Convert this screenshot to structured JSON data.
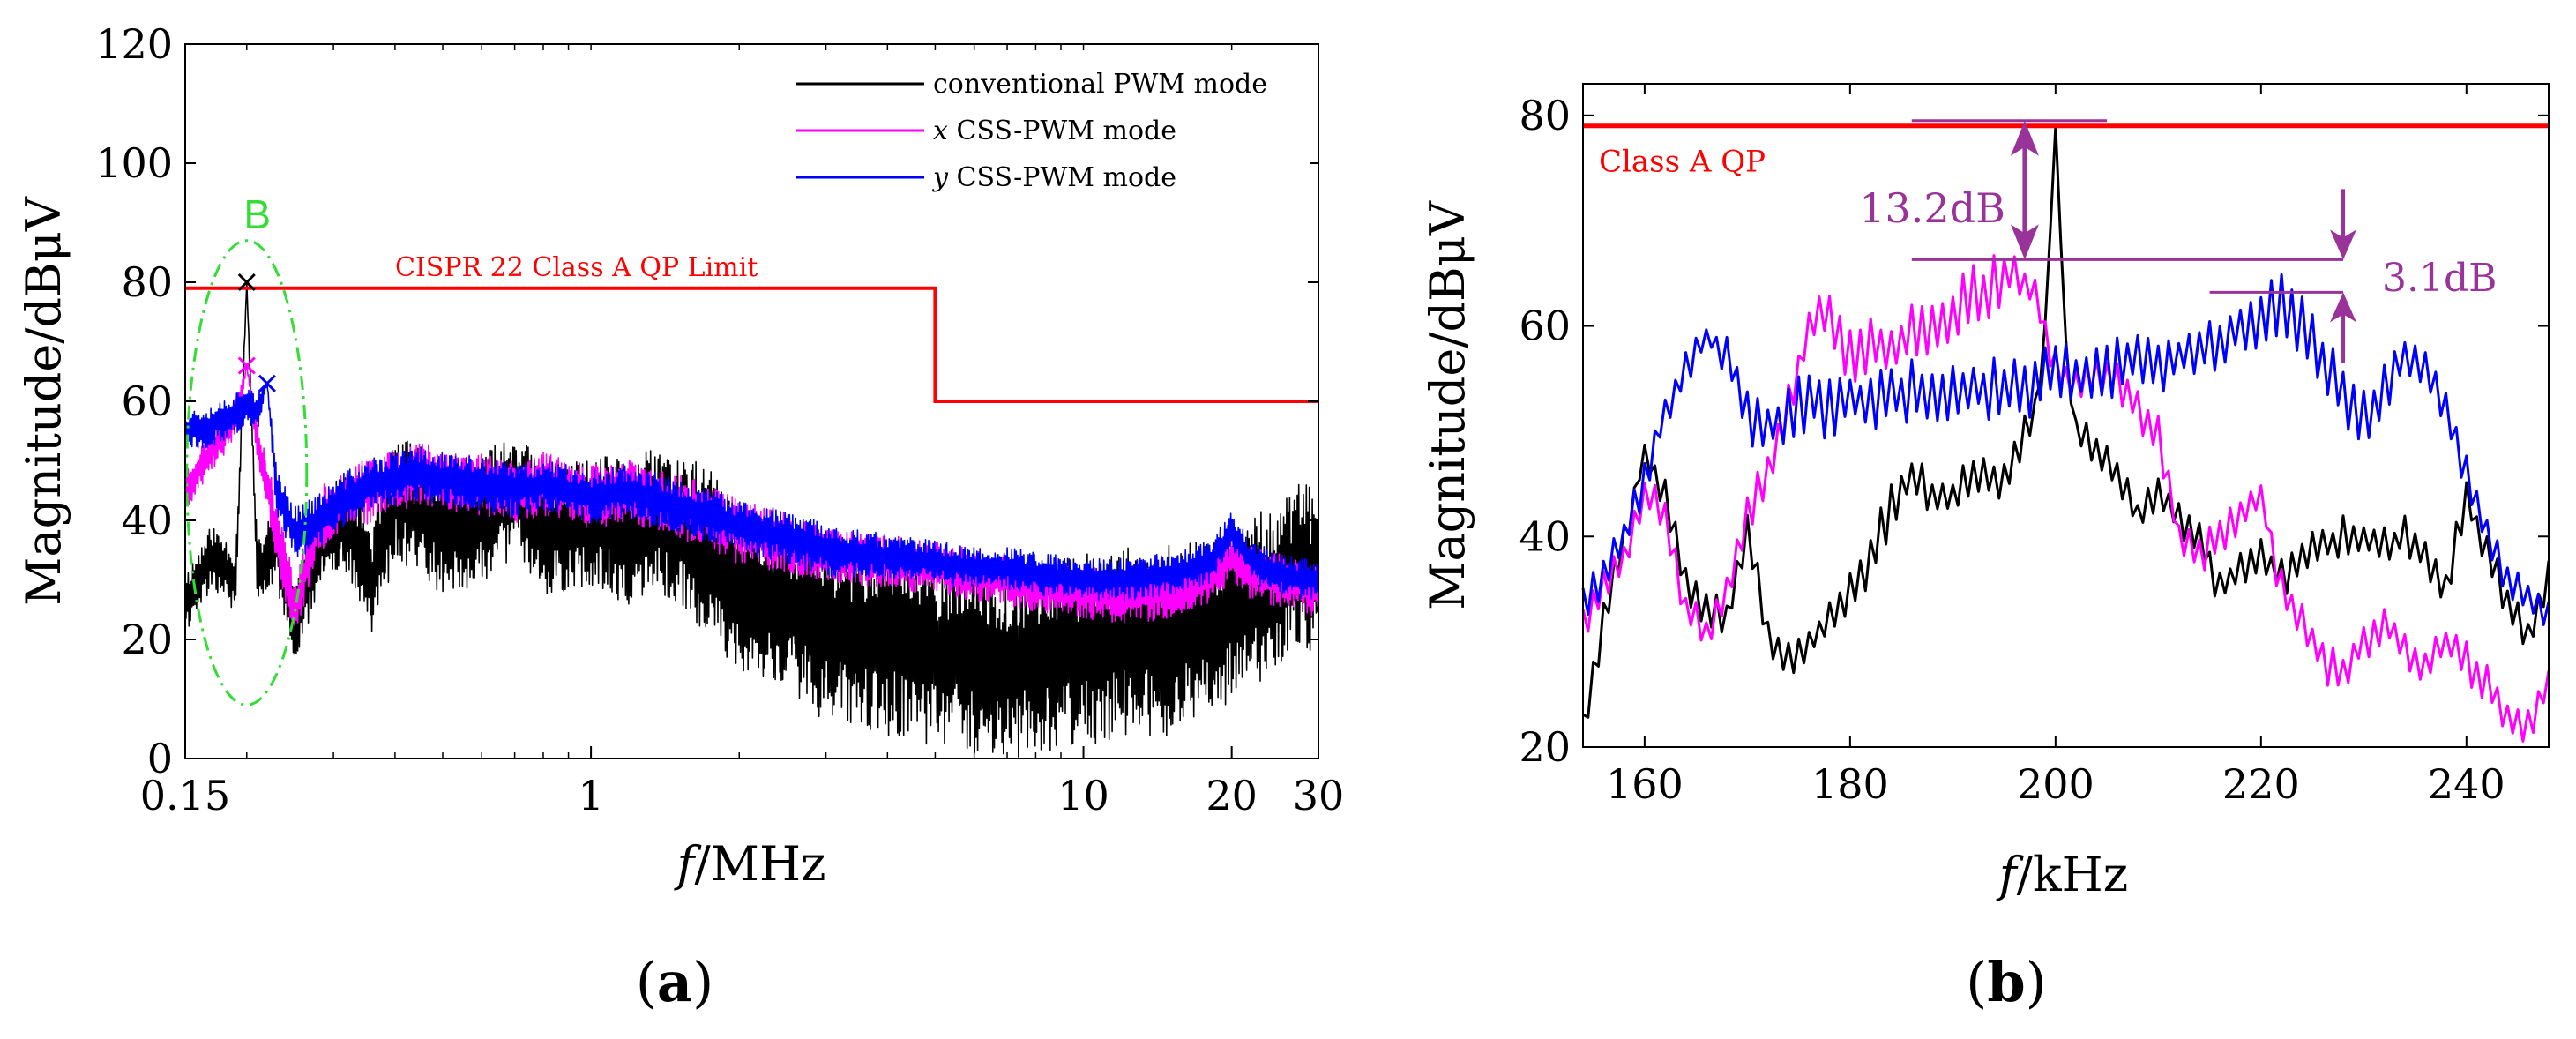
{
  "chart_data": [
    {
      "panel": "a",
      "type": "line",
      "xscale": "log",
      "xlim": [
        0.15,
        30
      ],
      "ylim": [
        0,
        120
      ],
      "xticks": [
        0.15,
        1,
        10,
        20,
        30
      ],
      "xtick_labels": [
        "0.15",
        "1",
        "10",
        "20",
        "30"
      ],
      "yticks": [
        0,
        20,
        40,
        60,
        80,
        100,
        120
      ],
      "ytick_labels": [
        "0",
        "20",
        "40",
        "60",
        "80",
        "100",
        "120"
      ],
      "xlabel_var": "f",
      "xlabel_unit": "/MHz",
      "ylabel": "Magnitude/dBμV",
      "panel_label": "a",
      "legend": {
        "position": "top-right",
        "entries": [
          {
            "var": "",
            "text": "conventional PWM mode",
            "color": "#000000"
          },
          {
            "var": "x",
            "text": " CSS-PWM mode",
            "color": "#ff00ff"
          },
          {
            "var": "y",
            "text": " CSS-PWM mode",
            "color": "#0000ff"
          }
        ]
      },
      "limit_line": {
        "label": "CISPR 22 Class A QP Limit",
        "color": "#ff0000",
        "points": [
          [
            0.15,
            79
          ],
          [
            5,
            79
          ],
          [
            5,
            60
          ],
          [
            30,
            60
          ]
        ]
      },
      "annotation": {
        "label": "B",
        "color": "#33dd33",
        "center": [
          0.2,
          48
        ],
        "half_height": 39
      },
      "markers": [
        {
          "x": 0.2,
          "y": 80,
          "color": "#000000"
        },
        {
          "x": 0.2,
          "y": 66,
          "color": "#ff00ff"
        },
        {
          "x": 0.22,
          "y": 63,
          "color": "#0000ff"
        }
      ],
      "series": [
        {
          "name": "conventional PWM mode",
          "color": "#000000",
          "x": [
            0.15,
            0.17,
            0.19,
            0.2,
            0.21,
            0.23,
            0.25,
            0.28,
            0.32,
            0.36,
            0.4,
            0.45,
            0.5,
            0.6,
            0.7,
            0.8,
            1,
            1.2,
            1.4,
            1.7,
            2,
            2.5,
            3,
            4,
            5,
            6,
            7,
            8,
            10,
            12,
            15,
            18,
            20,
            22,
            25,
            28,
            30
          ],
          "y": [
            26,
            34,
            30,
            80,
            31,
            36,
            22,
            36,
            40,
            30,
            44,
            42,
            38,
            40,
            45,
            38,
            40,
            38,
            40,
            35,
            28,
            26,
            22,
            20,
            18,
            17,
            16,
            17,
            18,
            20,
            20,
            22,
            24,
            26,
            30,
            33,
            30
          ],
          "amp": [
            6,
            6,
            6,
            0,
            6,
            8,
            8,
            8,
            10,
            10,
            12,
            12,
            12,
            12,
            12,
            12,
            12,
            14,
            14,
            16,
            16,
            16,
            18,
            18,
            18,
            18,
            18,
            18,
            18,
            18,
            18,
            16,
            16,
            16,
            16,
            16,
            14
          ]
        },
        {
          "name": "x CSS-PWM mode",
          "color": "#ff00ff",
          "x": [
            0.15,
            0.17,
            0.19,
            0.2,
            0.21,
            0.23,
            0.25,
            0.28,
            0.32,
            0.36,
            0.4,
            0.45,
            0.5,
            0.6,
            0.7,
            0.8,
            1,
            1.2,
            1.4,
            1.7,
            2,
            2.5,
            3,
            4,
            5,
            6,
            7,
            8,
            10,
            12,
            15,
            18,
            20,
            22,
            25,
            28,
            30
          ],
          "y": [
            45,
            52,
            57,
            66,
            54,
            38,
            25,
            40,
            44,
            45,
            47,
            48,
            47,
            46,
            45,
            46,
            44,
            45,
            43,
            41,
            38,
            36,
            34,
            33,
            32,
            31,
            30,
            29,
            28,
            27,
            28,
            30,
            34,
            31,
            30,
            29,
            28
          ],
          "amp": [
            4,
            4,
            4,
            0,
            4,
            6,
            6,
            6,
            6,
            6,
            6,
            6,
            6,
            6,
            6,
            6,
            6,
            6,
            6,
            6,
            6,
            6,
            5,
            5,
            5,
            5,
            5,
            5,
            5,
            5,
            5,
            5,
            5,
            5,
            5,
            5,
            5
          ]
        },
        {
          "name": "y CSS-PWM mode",
          "color": "#0000ff",
          "x": [
            0.15,
            0.17,
            0.19,
            0.2,
            0.21,
            0.22,
            0.23,
            0.25,
            0.28,
            0.32,
            0.36,
            0.4,
            0.45,
            0.5,
            0.6,
            0.7,
            0.8,
            1,
            1.2,
            1.4,
            1.7,
            2,
            2.5,
            3,
            4,
            5,
            6,
            7,
            8,
            10,
            12,
            15,
            18,
            20,
            22,
            25,
            28,
            30
          ],
          "y": [
            55,
            56,
            58,
            60,
            58,
            63,
            45,
            38,
            40,
            44,
            46,
            47,
            48,
            47,
            46,
            45,
            46,
            44,
            45,
            43,
            41,
            39,
            37,
            35,
            34,
            33,
            32,
            32,
            31,
            30,
            30,
            31,
            33,
            38,
            33,
            31,
            30,
            30
          ],
          "amp": [
            4,
            4,
            4,
            4,
            4,
            0,
            5,
            5,
            5,
            5,
            5,
            5,
            5,
            5,
            5,
            5,
            5,
            5,
            5,
            5,
            5,
            5,
            5,
            5,
            4,
            4,
            4,
            4,
            4,
            4,
            4,
            4,
            4,
            4,
            4,
            4,
            4,
            4
          ]
        }
      ]
    },
    {
      "panel": "b",
      "type": "line",
      "xlim": [
        154,
        248
      ],
      "ylim": [
        20,
        83
      ],
      "xticks": [
        160,
        180,
        200,
        220,
        240
      ],
      "xtick_labels": [
        "160",
        "180",
        "200",
        "220",
        "240"
      ],
      "yticks": [
        20,
        40,
        60,
        80
      ],
      "ytick_labels": [
        "20",
        "40",
        "60",
        "80"
      ],
      "xlabel_var": "f",
      "xlabel_unit": "/kHz",
      "ylabel": "Magnitude/dBμV",
      "panel_label": "b",
      "limit_line": {
        "label": "Class A QP",
        "color": "#ff0000",
        "y": 79
      },
      "annotations": [
        {
          "label": "13.2dB",
          "color": "#993399",
          "x": 197,
          "y_top": 79.5,
          "y_bottom": 66.3,
          "line_x_start": 186,
          "line_x_end": 228
        },
        {
          "label": "3.1dB",
          "color": "#993399",
          "x": 228,
          "y_top": 66.3,
          "y_bottom": 63.2,
          "line_x_start": 215,
          "line_x_end": 228
        }
      ],
      "series": [
        {
          "name": "conventional PWM mode",
          "color": "#000000",
          "x": [
            154,
            156,
            158,
            160,
            162,
            164,
            166,
            168,
            170,
            172,
            174,
            176,
            178,
            180,
            182,
            184,
            186,
            188,
            190,
            192,
            194,
            196,
            198,
            199,
            200,
            201,
            202,
            204,
            206,
            208,
            210,
            212,
            214,
            216,
            218,
            220,
            222,
            224,
            226,
            228,
            230,
            232,
            234,
            236,
            238,
            240,
            242,
            244,
            246,
            248
          ],
          "y": [
            22,
            32,
            40,
            48,
            44,
            35,
            33,
            32,
            41,
            30,
            28,
            30,
            32,
            35,
            38,
            43,
            46,
            44,
            44,
            46,
            45,
            47,
            52,
            60,
            79,
            58,
            50,
            48,
            46,
            42,
            44,
            42,
            40,
            35,
            37,
            38,
            36,
            38,
            39,
            40,
            40,
            39,
            40,
            38,
            35,
            44,
            38,
            34,
            30,
            36
          ],
          "amp": [
            2,
            2,
            2,
            1,
            2,
            2,
            2,
            2,
            2,
            2,
            2,
            2,
            2,
            3,
            3,
            3,
            2,
            2,
            2,
            2,
            2,
            2,
            2,
            1,
            0,
            1,
            2,
            2,
            2,
            2,
            2,
            2,
            2,
            2,
            2,
            2,
            2,
            2,
            2,
            2,
            2,
            2,
            2,
            2,
            2,
            2,
            2,
            2,
            2,
            2
          ]
        },
        {
          "name": "x CSS-PWM mode",
          "color": "#ff00ff",
          "x": [
            154,
            156,
            158,
            160,
            162,
            164,
            166,
            168,
            170,
            172,
            174,
            176,
            178,
            180,
            182,
            184,
            186,
            188,
            190,
            192,
            194,
            196,
            198,
            200,
            202,
            204,
            206,
            208,
            210,
            212,
            214,
            216,
            218,
            220,
            222,
            224,
            226,
            228,
            230,
            232,
            234,
            236,
            238,
            240,
            242,
            244,
            246,
            248
          ],
          "y": [
            32,
            35,
            38,
            44,
            42,
            33,
            31,
            35,
            42,
            46,
            52,
            60,
            61,
            57,
            58,
            58,
            59,
            60,
            61,
            63,
            64,
            65,
            63,
            56,
            54,
            55,
            55,
            52,
            50,
            40,
            38,
            40,
            42,
            44,
            35,
            32,
            28,
            27,
            30,
            32,
            29,
            28,
            30,
            28,
            26,
            23,
            22,
            26
          ],
          "amp": [
            2,
            2,
            2,
            2,
            2,
            2,
            2,
            2,
            2,
            3,
            3,
            2,
            3,
            3,
            3,
            3,
            3,
            3,
            3,
            3,
            3,
            2,
            2,
            2,
            2,
            2,
            2,
            2,
            2,
            2,
            2,
            2,
            2,
            2,
            2,
            2,
            2,
            2,
            2,
            2,
            2,
            2,
            2,
            2,
            2,
            2,
            2,
            2
          ]
        },
        {
          "name": "y CSS-PWM mode",
          "color": "#0000ff",
          "x": [
            154,
            156,
            158,
            160,
            162,
            164,
            166,
            168,
            170,
            172,
            174,
            176,
            178,
            180,
            182,
            184,
            186,
            188,
            190,
            192,
            194,
            196,
            198,
            200,
            202,
            204,
            206,
            208,
            210,
            212,
            214,
            216,
            218,
            220,
            222,
            224,
            226,
            228,
            230,
            232,
            234,
            236,
            238,
            240,
            242,
            244,
            246,
            248
          ],
          "y": [
            34,
            36,
            40,
            45,
            52,
            56,
            59,
            57,
            52,
            50,
            52,
            53,
            52,
            53,
            53,
            53,
            54,
            53,
            54,
            54,
            54,
            55,
            54,
            56,
            55,
            56,
            56,
            57,
            56,
            57,
            58,
            58,
            60,
            61,
            62,
            60,
            57,
            53,
            51,
            54,
            57,
            56,
            52,
            46,
            40,
            36,
            34,
            33
          ],
          "amp": [
            2,
            2,
            2,
            2,
            2,
            2,
            1,
            2,
            3,
            3,
            3,
            3,
            3,
            3,
            3,
            3,
            3,
            3,
            3,
            3,
            3,
            3,
            3,
            3,
            3,
            3,
            3,
            3,
            3,
            3,
            3,
            3,
            3,
            3,
            3,
            3,
            3,
            3,
            3,
            3,
            2,
            2,
            2,
            2,
            2,
            2,
            2,
            2
          ]
        }
      ]
    }
  ]
}
